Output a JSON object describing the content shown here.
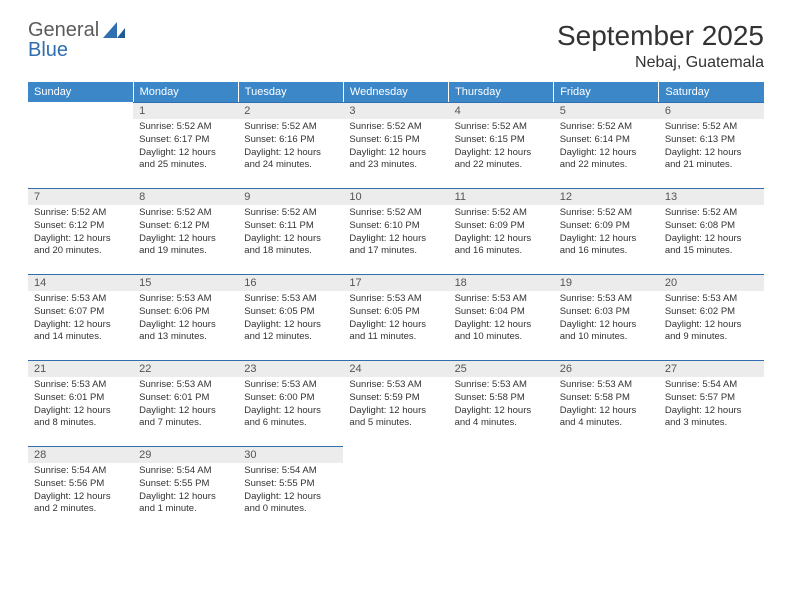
{
  "logo": {
    "text_general": "General",
    "text_blue": "Blue"
  },
  "title": "September 2025",
  "location": "Nebaj, Guatemala",
  "header_color": "#3b87c8",
  "daynum_bg": "#ececec",
  "border_color": "#2f6fb0",
  "text_color": "#333333",
  "logo_gray": "#5b5b5b",
  "logo_blue": "#2f6fb0",
  "weekdays": [
    "Sunday",
    "Monday",
    "Tuesday",
    "Wednesday",
    "Thursday",
    "Friday",
    "Saturday"
  ],
  "weeks": [
    [
      null,
      {
        "n": "1",
        "sr": "5:52 AM",
        "ss": "6:17 PM",
        "dl": "12 hours and 25 minutes."
      },
      {
        "n": "2",
        "sr": "5:52 AM",
        "ss": "6:16 PM",
        "dl": "12 hours and 24 minutes."
      },
      {
        "n": "3",
        "sr": "5:52 AM",
        "ss": "6:15 PM",
        "dl": "12 hours and 23 minutes."
      },
      {
        "n": "4",
        "sr": "5:52 AM",
        "ss": "6:15 PM",
        "dl": "12 hours and 22 minutes."
      },
      {
        "n": "5",
        "sr": "5:52 AM",
        "ss": "6:14 PM",
        "dl": "12 hours and 22 minutes."
      },
      {
        "n": "6",
        "sr": "5:52 AM",
        "ss": "6:13 PM",
        "dl": "12 hours and 21 minutes."
      }
    ],
    [
      {
        "n": "7",
        "sr": "5:52 AM",
        "ss": "6:12 PM",
        "dl": "12 hours and 20 minutes."
      },
      {
        "n": "8",
        "sr": "5:52 AM",
        "ss": "6:12 PM",
        "dl": "12 hours and 19 minutes."
      },
      {
        "n": "9",
        "sr": "5:52 AM",
        "ss": "6:11 PM",
        "dl": "12 hours and 18 minutes."
      },
      {
        "n": "10",
        "sr": "5:52 AM",
        "ss": "6:10 PM",
        "dl": "12 hours and 17 minutes."
      },
      {
        "n": "11",
        "sr": "5:52 AM",
        "ss": "6:09 PM",
        "dl": "12 hours and 16 minutes."
      },
      {
        "n": "12",
        "sr": "5:52 AM",
        "ss": "6:09 PM",
        "dl": "12 hours and 16 minutes."
      },
      {
        "n": "13",
        "sr": "5:52 AM",
        "ss": "6:08 PM",
        "dl": "12 hours and 15 minutes."
      }
    ],
    [
      {
        "n": "14",
        "sr": "5:53 AM",
        "ss": "6:07 PM",
        "dl": "12 hours and 14 minutes."
      },
      {
        "n": "15",
        "sr": "5:53 AM",
        "ss": "6:06 PM",
        "dl": "12 hours and 13 minutes."
      },
      {
        "n": "16",
        "sr": "5:53 AM",
        "ss": "6:05 PM",
        "dl": "12 hours and 12 minutes."
      },
      {
        "n": "17",
        "sr": "5:53 AM",
        "ss": "6:05 PM",
        "dl": "12 hours and 11 minutes."
      },
      {
        "n": "18",
        "sr": "5:53 AM",
        "ss": "6:04 PM",
        "dl": "12 hours and 10 minutes."
      },
      {
        "n": "19",
        "sr": "5:53 AM",
        "ss": "6:03 PM",
        "dl": "12 hours and 10 minutes."
      },
      {
        "n": "20",
        "sr": "5:53 AM",
        "ss": "6:02 PM",
        "dl": "12 hours and 9 minutes."
      }
    ],
    [
      {
        "n": "21",
        "sr": "5:53 AM",
        "ss": "6:01 PM",
        "dl": "12 hours and 8 minutes."
      },
      {
        "n": "22",
        "sr": "5:53 AM",
        "ss": "6:01 PM",
        "dl": "12 hours and 7 minutes."
      },
      {
        "n": "23",
        "sr": "5:53 AM",
        "ss": "6:00 PM",
        "dl": "12 hours and 6 minutes."
      },
      {
        "n": "24",
        "sr": "5:53 AM",
        "ss": "5:59 PM",
        "dl": "12 hours and 5 minutes."
      },
      {
        "n": "25",
        "sr": "5:53 AM",
        "ss": "5:58 PM",
        "dl": "12 hours and 4 minutes."
      },
      {
        "n": "26",
        "sr": "5:53 AM",
        "ss": "5:58 PM",
        "dl": "12 hours and 4 minutes."
      },
      {
        "n": "27",
        "sr": "5:54 AM",
        "ss": "5:57 PM",
        "dl": "12 hours and 3 minutes."
      }
    ],
    [
      {
        "n": "28",
        "sr": "5:54 AM",
        "ss": "5:56 PM",
        "dl": "12 hours and 2 minutes."
      },
      {
        "n": "29",
        "sr": "5:54 AM",
        "ss": "5:55 PM",
        "dl": "12 hours and 1 minute."
      },
      {
        "n": "30",
        "sr": "5:54 AM",
        "ss": "5:55 PM",
        "dl": "12 hours and 0 minutes."
      },
      null,
      null,
      null,
      null
    ]
  ],
  "labels": {
    "sunrise": "Sunrise: ",
    "sunset": "Sunset: ",
    "daylight": "Daylight: "
  }
}
